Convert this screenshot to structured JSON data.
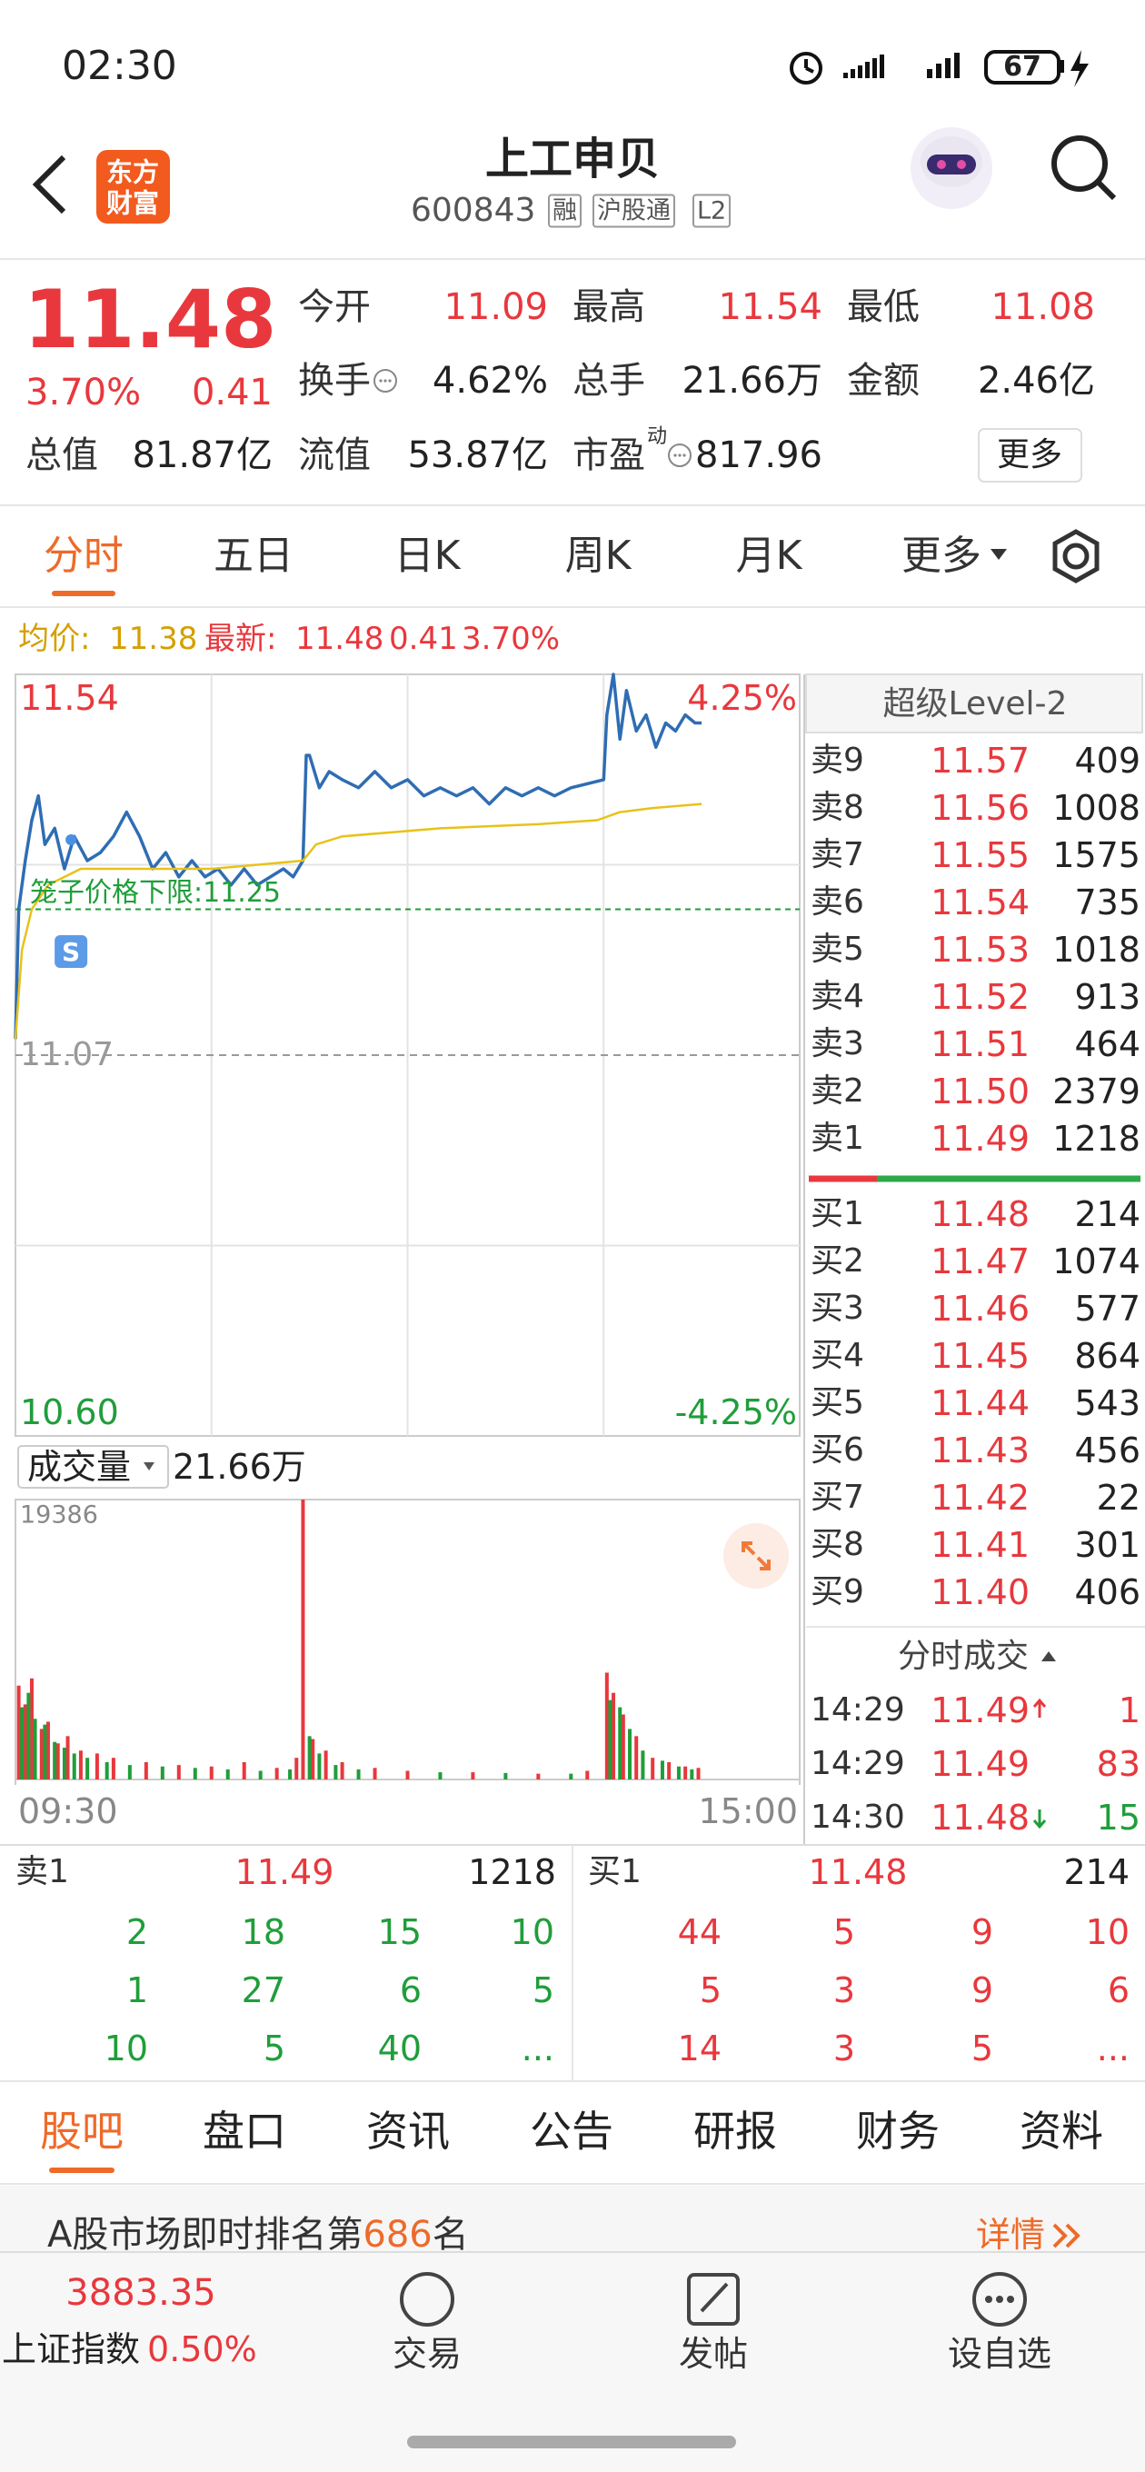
{
  "status_bar": {
    "time": "02:30",
    "battery": "67"
  },
  "header": {
    "logo": [
      "东方",
      "财富"
    ],
    "title": "上工申贝",
    "code": "600843",
    "tags": [
      "融",
      "沪股通",
      "L2"
    ]
  },
  "quote": {
    "price": "11.48",
    "change_pct": "3.70%",
    "change": "0.41",
    "stats": [
      {
        "label": "今开",
        "value": "11.09"
      },
      {
        "label": "最高",
        "value": "11.54"
      },
      {
        "label": "最低",
        "value": "11.08"
      },
      {
        "label": "换手",
        "value": "4.62%",
        "info": true
      },
      {
        "label": "总手",
        "value": "21.66万"
      },
      {
        "label": "金额",
        "value": "2.46亿"
      },
      {
        "label": "总值",
        "value": "81.87亿"
      },
      {
        "label": "流值",
        "value": "53.87亿"
      },
      {
        "label": "市盈",
        "sup": "动",
        "value": "817.96",
        "info": true
      }
    ],
    "more": "更多"
  },
  "tabs": {
    "items": [
      "分时",
      "五日",
      "日K",
      "周K",
      "月K",
      "更多"
    ],
    "active": 0
  },
  "legend": {
    "avg_label": "均价:",
    "avg": "11.38",
    "latest_label": "最新:",
    "latest": "11.48",
    "change": "0.41",
    "pct": "3.70%"
  },
  "chart_data": [
    {
      "type": "line",
      "xlim": [
        0,
        240
      ],
      "ylim": [
        10.6,
        11.54
      ],
      "yticks": [
        11.54,
        {
          "value": 10.6,
          "label": "10.60"
        }
      ],
      "y2lim": [
        -4.25,
        4.25
      ],
      "y2ticks": [
        {
          "value": 4.25,
          "label": "4.25%"
        },
        {
          "value": -4.25,
          "label": "-4.25%"
        }
      ],
      "xgrid": [
        60,
        120,
        180
      ],
      "ygrid": [
        11.305,
        10.835
      ],
      "baseline": {
        "value": 11.07,
        "label": "11.07"
      },
      "annotation": {
        "value": 11.25,
        "label": "笼子价格下限:11.25",
        "color": "#1f9e3a"
      },
      "markers": [
        {
          "x": 17,
          "label": "S"
        }
      ],
      "series": [
        {
          "color": "#2f6db3",
          "x": [
            0,
            1,
            3,
            5,
            7,
            9,
            12,
            15,
            18,
            22,
            26,
            30,
            34,
            38,
            42,
            46,
            50,
            54,
            58,
            62,
            66,
            70,
            74,
            78,
            82,
            85,
            88,
            89,
            90,
            93,
            96,
            100,
            105,
            110,
            115,
            120,
            125,
            130,
            135,
            140,
            145,
            150,
            155,
            160,
            165,
            170,
            180,
            181,
            183,
            185,
            187,
            190,
            193,
            196,
            199,
            202,
            205,
            208,
            210
          ],
          "values": [
            11.09,
            11.25,
            11.31,
            11.36,
            11.39,
            11.33,
            11.35,
            11.3,
            11.34,
            11.31,
            11.32,
            11.34,
            11.37,
            11.34,
            11.3,
            11.32,
            11.29,
            11.31,
            11.29,
            11.3,
            11.28,
            11.3,
            11.28,
            11.29,
            11.3,
            11.29,
            11.31,
            11.44,
            11.44,
            11.4,
            11.42,
            11.41,
            11.4,
            11.42,
            11.4,
            11.41,
            11.39,
            11.4,
            11.39,
            11.4,
            11.38,
            11.4,
            11.39,
            11.4,
            11.39,
            11.4,
            11.41,
            11.49,
            11.54,
            11.46,
            11.52,
            11.47,
            11.49,
            11.45,
            11.48,
            11.47,
            11.49,
            11.48,
            11.48
          ]
        },
        {
          "color": "#e8c21a",
          "x": [
            0,
            2,
            5,
            10,
            20,
            30,
            60,
            88,
            92,
            100,
            130,
            160,
            178,
            185,
            195,
            210
          ],
          "values": [
            11.09,
            11.2,
            11.25,
            11.28,
            11.3,
            11.3,
            11.3,
            11.31,
            11.33,
            11.34,
            11.35,
            11.355,
            11.36,
            11.37,
            11.375,
            11.38
          ]
        }
      ]
    },
    {
      "type": "bar",
      "title": "成交量",
      "total": "21.66万",
      "xlim": [
        0,
        240
      ],
      "ylim": [
        0,
        19386
      ],
      "yticks": [
        19386
      ],
      "xticks": [
        {
          "value": 0,
          "label": "09:30"
        },
        {
          "value": 240,
          "label": "15:00"
        }
      ],
      "series": [
        {
          "color": "#e8383d",
          "x": [
            1,
            3,
            5,
            8,
            10,
            13,
            16,
            20,
            25,
            30,
            40,
            50,
            60,
            70,
            80,
            86,
            88,
            91,
            95,
            100,
            110,
            120,
            140,
            160,
            175,
            181,
            183,
            186,
            190,
            195,
            200,
            205,
            209
          ],
          "values": [
            6500,
            5200,
            7000,
            3500,
            4000,
            2500,
            3000,
            2000,
            1800,
            1500,
            1200,
            1000,
            900,
            1200,
            800,
            1500,
            19386,
            2800,
            2000,
            1200,
            800,
            600,
            500,
            400,
            600,
            7400,
            6000,
            4500,
            3000,
            1500,
            1200,
            900,
            800
          ]
        },
        {
          "color": "#1f9e3a",
          "x": [
            2,
            4,
            6,
            9,
            12,
            15,
            18,
            22,
            28,
            35,
            45,
            55,
            65,
            75,
            84,
            90,
            93,
            98,
            105,
            130,
            150,
            170,
            182,
            185,
            188,
            192,
            198,
            203,
            207
          ],
          "values": [
            5000,
            6000,
            4200,
            3800,
            2600,
            2200,
            1800,
            1500,
            1200,
            1000,
            900,
            800,
            700,
            600,
            700,
            3000,
            1800,
            1000,
            700,
            500,
            450,
            400,
            5500,
            5000,
            3500,
            2000,
            1300,
            900,
            700
          ]
        }
      ]
    }
  ],
  "order_book": {
    "title": "超级Level-2",
    "asks": [
      {
        "label": "卖9",
        "price": "11.57",
        "vol": "409"
      },
      {
        "label": "卖8",
        "price": "11.56",
        "vol": "1008"
      },
      {
        "label": "卖7",
        "price": "11.55",
        "vol": "1575"
      },
      {
        "label": "卖6",
        "price": "11.54",
        "vol": "735"
      },
      {
        "label": "卖5",
        "price": "11.53",
        "vol": "1018"
      },
      {
        "label": "卖4",
        "price": "11.52",
        "vol": "913"
      },
      {
        "label": "卖3",
        "price": "11.51",
        "vol": "464"
      },
      {
        "label": "卖2",
        "price": "11.50",
        "vol": "2379"
      },
      {
        "label": "卖1",
        "price": "11.49",
        "vol": "1218"
      }
    ],
    "bids": [
      {
        "label": "买1",
        "price": "11.48",
        "vol": "214"
      },
      {
        "label": "买2",
        "price": "11.47",
        "vol": "1074"
      },
      {
        "label": "买3",
        "price": "11.46",
        "vol": "577"
      },
      {
        "label": "买4",
        "price": "11.45",
        "vol": "864"
      },
      {
        "label": "买5",
        "price": "11.44",
        "vol": "543"
      },
      {
        "label": "买6",
        "price": "11.43",
        "vol": "456"
      },
      {
        "label": "买7",
        "price": "11.42",
        "vol": "22"
      },
      {
        "label": "买8",
        "price": "11.41",
        "vol": "301"
      },
      {
        "label": "买9",
        "price": "11.40",
        "vol": "406"
      }
    ]
  },
  "trades": {
    "title": "分时成交",
    "rows": [
      {
        "time": "14:29",
        "price": "11.49",
        "vol": "1",
        "side": "buy",
        "arrow": true
      },
      {
        "time": "14:29",
        "price": "11.49",
        "vol": "83",
        "side": "buy",
        "arrow": false
      },
      {
        "time": "14:30",
        "price": "11.48",
        "vol": "15",
        "side": "sell",
        "arrow": true
      }
    ]
  },
  "queue": {
    "sell": {
      "label": "卖1",
      "price": "11.49",
      "vol": "1218",
      "orders": [
        "2",
        "18",
        "15",
        "10",
        "1",
        "27",
        "6",
        "5",
        "10",
        "5",
        "40",
        "..."
      ]
    },
    "buy": {
      "label": "买1",
      "price": "11.48",
      "vol": "214",
      "orders": [
        "44",
        "5",
        "9",
        "10",
        "5",
        "3",
        "9",
        "6",
        "14",
        "3",
        "5",
        "..."
      ]
    }
  },
  "bottom_tabs": {
    "items": [
      "股吧",
      "盘口",
      "资讯",
      "公告",
      "研报",
      "财务",
      "资料"
    ],
    "active": 0
  },
  "banner": {
    "prefix": "A股市场即时排名第",
    "rank": "686",
    "suffix": "名",
    "link": "详情"
  },
  "nav": {
    "index_value": "3883.35",
    "index_name": "上证指数",
    "index_change": "0.50%",
    "items": [
      "交易",
      "发帖",
      "设自选"
    ]
  }
}
